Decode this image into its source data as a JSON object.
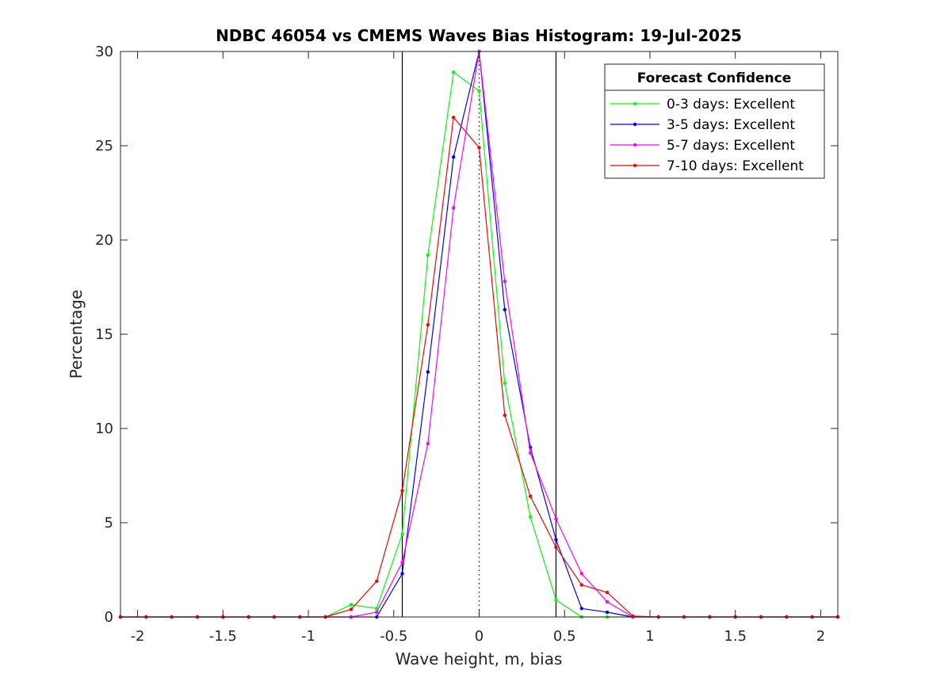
{
  "chart_data": {
    "type": "line",
    "title": "NDBC 46054 vs CMEMS Waves Bias Histogram: 19-Jul-2025",
    "xlabel": "Wave height, m, bias",
    "ylabel": "Percentage",
    "xlim": [
      -2.1,
      2.1
    ],
    "ylim": [
      0,
      30
    ],
    "xticks": [
      -2,
      -1.5,
      -1,
      -0.5,
      0,
      0.5,
      1,
      1.5,
      2
    ],
    "xtick_labels": [
      "-2",
      "-1.5",
      "-1",
      "-0.5",
      "0",
      "0.5",
      "1",
      "1.5",
      "2"
    ],
    "yticks": [
      0,
      5,
      10,
      15,
      20,
      25,
      30
    ],
    "ytick_labels": [
      "0",
      "5",
      "10",
      "15",
      "20",
      "25",
      "30"
    ],
    "grid": false,
    "vertical_lines": [
      -0.45,
      0.45
    ],
    "zero_line": 0,
    "legend": {
      "title": "Forecast Confidence",
      "position": "top-right",
      "entries": [
        "0-3 days: Excellent",
        "3-5 days: Excellent",
        "5-7 days: Excellent",
        "7-10 days: Excellent"
      ]
    },
    "x": [
      -2.1,
      -1.95,
      -1.8,
      -1.65,
      -1.5,
      -1.35,
      -1.2,
      -1.05,
      -0.9,
      -0.75,
      -0.6,
      -0.45,
      -0.3,
      -0.15,
      0,
      0.15,
      0.3,
      0.45,
      0.6,
      0.75,
      0.9,
      1.05,
      1.2,
      1.35,
      1.5,
      1.65,
      1.8,
      1.95,
      2.1
    ],
    "series": [
      {
        "name": "0-3 days: Excellent",
        "color": "#00ff00",
        "values": [
          0,
          0,
          0,
          0,
          0,
          0,
          0,
          0,
          0,
          0.65,
          0.45,
          4.4,
          19.2,
          28.9,
          27.9,
          12.4,
          5.3,
          0.9,
          0,
          0,
          0,
          0,
          0,
          0,
          0,
          0,
          0,
          0,
          0
        ]
      },
      {
        "name": "3-5 days: Excellent",
        "color": "#0000ff",
        "values": [
          0,
          0,
          0,
          0,
          0,
          0,
          0,
          0,
          0,
          0,
          0,
          2.3,
          13.0,
          24.4,
          30.0,
          16.3,
          9.0,
          4.1,
          0.45,
          0.25,
          0,
          0,
          0,
          0,
          0,
          0,
          0,
          0,
          0
        ]
      },
      {
        "name": "5-7 days: Excellent",
        "color": "#ff00ff",
        "values": [
          0,
          0,
          0,
          0,
          0,
          0,
          0,
          0,
          0,
          0,
          0.25,
          2.9,
          9.2,
          21.7,
          30.0,
          17.8,
          8.7,
          5.2,
          2.3,
          0.8,
          0,
          0,
          0,
          0,
          0,
          0,
          0,
          0,
          0
        ]
      },
      {
        "name": "7-10 days: Excellent",
        "color": "#ff0000",
        "values": [
          0,
          0,
          0,
          0,
          0,
          0,
          0,
          0,
          0,
          0.4,
          1.9,
          6.7,
          15.5,
          26.5,
          24.9,
          10.7,
          6.4,
          3.7,
          1.7,
          1.3,
          0.05,
          0,
          0,
          0,
          0,
          0,
          0,
          0,
          0
        ]
      }
    ]
  }
}
